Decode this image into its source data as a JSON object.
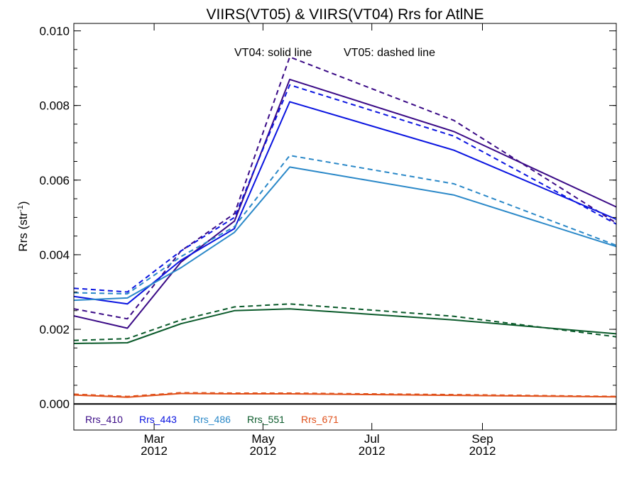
{
  "chart_data": {
    "type": "line",
    "title": "VIIRS(VT05) & VIIRS(VT04)  Rrs for AtlNE",
    "ylabel": "Rrs (str",
    "ylabel_sup": "-1",
    "ylim": [
      -0.0007,
      0.0102
    ],
    "y_ticks": [
      "0.000",
      "0.002",
      "0.004",
      "0.006",
      "0.008",
      "0.010"
    ],
    "x_range": [
      "2012-01-16",
      "2012-11-15"
    ],
    "x_ticks": [
      {
        "date": "2012-03-01",
        "month": "Mar",
        "year": "2012"
      },
      {
        "date": "2012-05-01",
        "month": "May",
        "year": "2012"
      },
      {
        "date": "2012-07-01",
        "month": "Jul",
        "year": "2012"
      },
      {
        "date": "2012-09-01",
        "month": "Sep",
        "year": "2012"
      }
    ],
    "x": [
      "2012-01-16",
      "2012-02-15",
      "2012-03-16",
      "2012-04-15",
      "2012-05-16",
      "2012-06-16",
      "2012-07-16",
      "2012-08-16",
      "2012-09-15",
      "2012-10-16",
      "2012-11-15"
    ],
    "annotations": {
      "solid": "VT04: solid line",
      "dashed": "VT05: dashed line"
    },
    "zero_line": true,
    "legend_position": "bottom-left",
    "series": [
      {
        "name": "Rrs_410",
        "color": "#3a0a86",
        "style": "solid",
        "values": [
          0.00236,
          0.00203,
          0.0038,
          0.0049,
          0.0087,
          null,
          null,
          0.0073,
          null,
          null,
          0.00528
        ]
      },
      {
        "name": "Rrs_410",
        "color": "#3a0a86",
        "style": "dashed",
        "values": [
          0.00255,
          0.00228,
          0.0041,
          0.0051,
          0.0093,
          null,
          null,
          0.0076,
          null,
          null,
          0.00485
        ]
      },
      {
        "name": "Rrs_443",
        "color": "#0a14e0",
        "style": "solid",
        "values": [
          0.00288,
          0.00268,
          0.00385,
          0.0047,
          0.0081,
          null,
          null,
          0.0068,
          null,
          null,
          0.00495
        ]
      },
      {
        "name": "Rrs_443",
        "color": "#0a14e0",
        "style": "dashed",
        "values": [
          0.0031,
          0.003,
          0.0041,
          0.005,
          0.00855,
          null,
          null,
          0.00718,
          null,
          null,
          0.00482
        ]
      },
      {
        "name": "Rrs_486",
        "color": "#2a88c8",
        "style": "solid",
        "values": [
          0.00278,
          0.00284,
          0.00365,
          0.0046,
          0.00635,
          null,
          null,
          0.0056,
          null,
          null,
          0.00422
        ]
      },
      {
        "name": "Rrs_486",
        "color": "#2a88c8",
        "style": "dashed",
        "values": [
          0.00298,
          0.00295,
          0.00395,
          0.00475,
          0.00666,
          null,
          null,
          0.0059,
          null,
          null,
          0.00425
        ]
      },
      {
        "name": "Rrs_551",
        "color": "#0a5a2a",
        "style": "solid",
        "values": [
          0.00162,
          0.00164,
          0.00215,
          0.0025,
          0.00255,
          null,
          null,
          0.00225,
          null,
          null,
          0.00188
        ]
      },
      {
        "name": "Rrs_551",
        "color": "#0a5a2a",
        "style": "dashed",
        "values": [
          0.0017,
          0.00175,
          0.00225,
          0.0026,
          0.00268,
          null,
          null,
          0.00235,
          null,
          null,
          0.0018
        ]
      },
      {
        "name": "Rrs_671",
        "color": "#e0501a",
        "style": "solid",
        "values": [
          0.00024,
          0.00018,
          0.00028,
          0.00027,
          0.00027,
          null,
          null,
          0.00023,
          null,
          null,
          0.00019
        ]
      },
      {
        "name": "Rrs_671",
        "color": "#e0501a",
        "style": "dashed",
        "values": [
          0.00026,
          0.0002,
          0.0003,
          0.00029,
          0.00029,
          null,
          null,
          0.00025,
          null,
          null,
          0.0002
        ]
      }
    ],
    "legend": [
      {
        "label": "Rrs_410",
        "color": "#3a0a86"
      },
      {
        "label": "Rrs_443",
        "color": "#0a14e0"
      },
      {
        "label": "Rrs_486",
        "color": "#2a88c8"
      },
      {
        "label": "Rrs_551",
        "color": "#0a5a2a"
      },
      {
        "label": "Rrs_671",
        "color": "#e0501a"
      }
    ]
  }
}
